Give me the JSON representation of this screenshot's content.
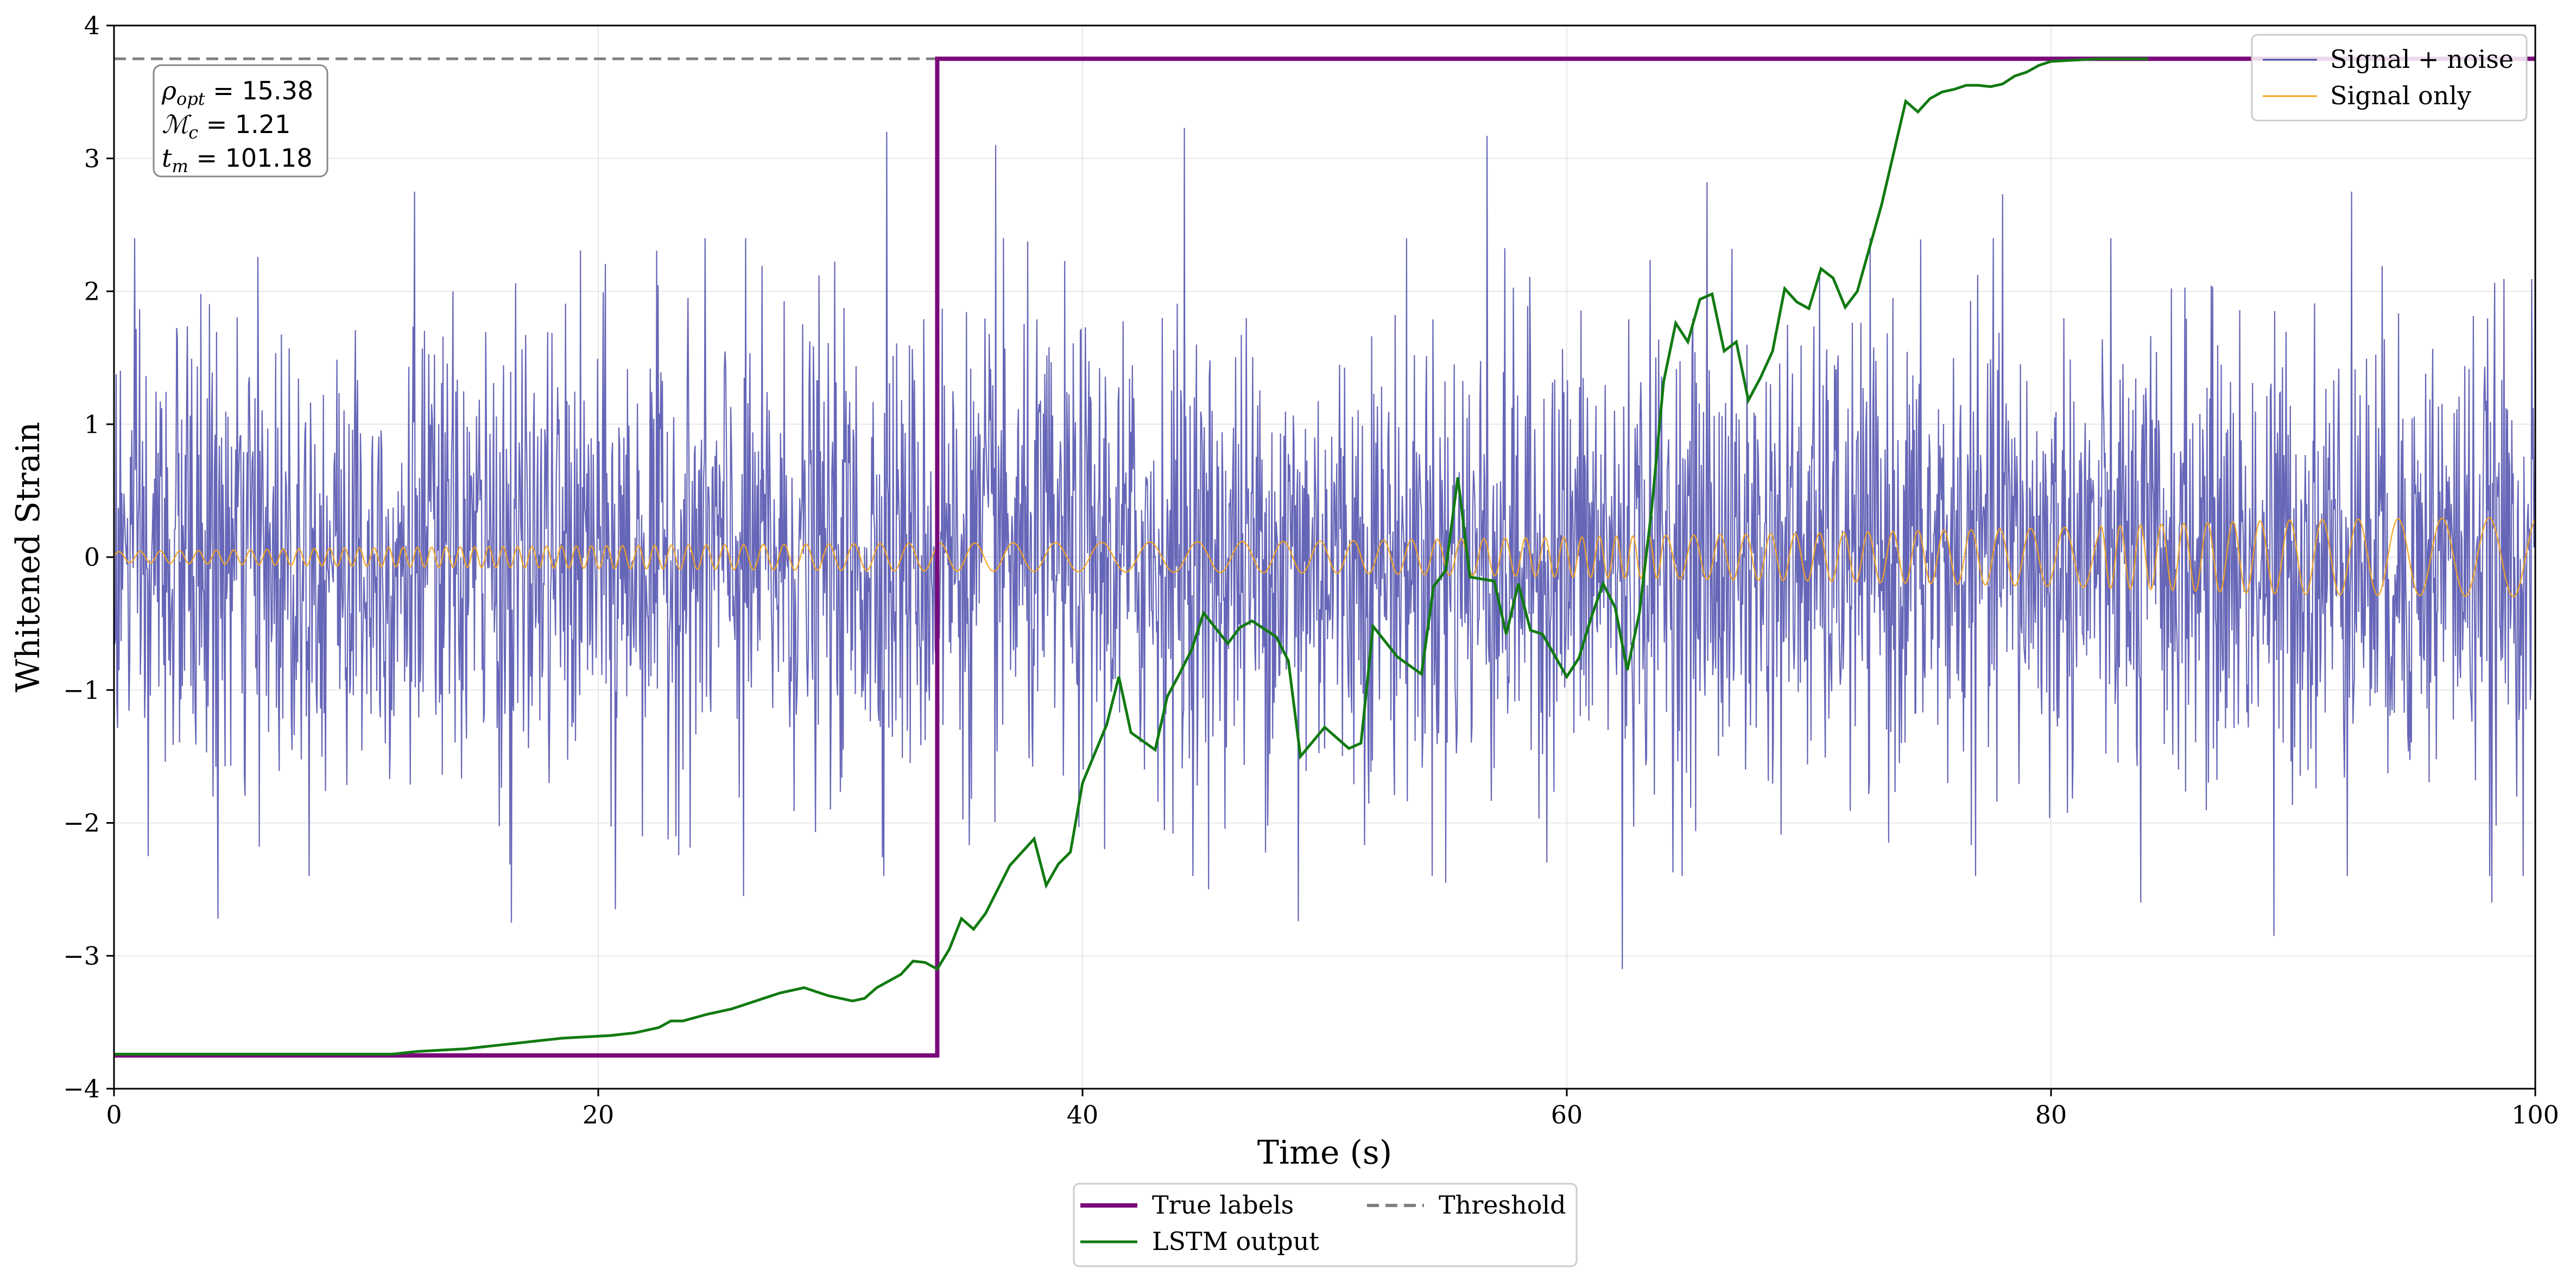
{
  "chart_data": {
    "type": "line",
    "xlabel": "Time (s)",
    "ylabel": "Whitened Strain",
    "xlim": [
      0,
      100
    ],
    "ylim": [
      -4,
      4
    ],
    "x_ticks": [
      "0",
      "20",
      "40",
      "60",
      "80",
      "100"
    ],
    "y_ticks": [
      "−4",
      "−3",
      "−2",
      "−1",
      "0",
      "1",
      "2",
      "3",
      "4"
    ],
    "grid": true,
    "threshold": 3.75,
    "annotation": {
      "rho": {
        "symbol": "ρ",
        "sub": "opt",
        "text": " = 15.38"
      },
      "mc": {
        "symbol": "ℳ",
        "sub": "c",
        "text": " = 1.21"
      },
      "tm": {
        "symbol": "t",
        "sub": "m",
        "text": " = 101.18"
      }
    },
    "legend_top": {
      "placement": "top-right",
      "entries": [
        "Signal + noise",
        "Signal only"
      ]
    },
    "legend_bottom": {
      "placement": "below-axes",
      "entries": [
        "True labels",
        "Threshold",
        "LSTM output"
      ]
    },
    "series": [
      {
        "name": "Signal + noise",
        "color": "#4b4bab",
        "noise_amplitude": 1.0,
        "extremes": [
          [
            1.4,
            -2.25
          ],
          [
            4.3,
            -2.72
          ],
          [
            12.4,
            2.75
          ],
          [
            16.4,
            -2.75
          ],
          [
            20.7,
            -2.65
          ],
          [
            26.0,
            -2.55
          ],
          [
            31.9,
            3.2
          ],
          [
            34.2,
            1.87
          ],
          [
            36.4,
            3.1
          ],
          [
            44.2,
            3.23
          ],
          [
            45.2,
            -2.5
          ],
          [
            48.9,
            -2.74
          ],
          [
            55.0,
            -2.45
          ],
          [
            56.7,
            3.17
          ],
          [
            62.3,
            -3.1
          ],
          [
            65.8,
            2.82
          ],
          [
            78.0,
            2.73
          ],
          [
            83.7,
            -2.6
          ],
          [
            89.2,
            -2.85
          ],
          [
            92.4,
            2.75
          ],
          [
            98.2,
            -2.6
          ]
        ]
      },
      {
        "name": "Signal only",
        "color": "#f5a31f",
        "amplitude_envelope": [
          [
            0,
            0.04
          ],
          [
            10,
            0.07
          ],
          [
            30,
            0.1
          ],
          [
            50,
            0.12
          ],
          [
            60,
            0.15
          ],
          [
            70,
            0.18
          ],
          [
            80,
            0.22
          ],
          [
            90,
            0.28
          ],
          [
            100,
            0.3
          ]
        ]
      },
      {
        "name": "True labels",
        "color": "#7a0a7a",
        "x": [
          0,
          34,
          34,
          100
        ],
        "y": [
          -3.75,
          -3.75,
          3.75,
          3.75
        ]
      },
      {
        "name": "LSTM output",
        "color": "#117a11",
        "x": [
          0,
          5,
          10,
          11.5,
          12.5,
          13.5,
          14.5,
          15.5,
          16.5,
          17.5,
          18.5,
          19.5,
          20.5,
          21.5,
          22.5,
          23.0,
          23.5,
          24.5,
          25.5,
          26.5,
          27.5,
          28.5,
          29.5,
          30.5,
          31.0,
          31.5,
          32.5,
          33.0,
          33.5,
          34.0,
          34.5,
          35.0,
          35.5,
          36.0,
          37.0,
          38.0,
          38.5,
          39.0,
          39.5,
          40.0,
          41.0,
          41.5,
          42.0,
          43.0,
          43.5,
          44.0,
          44.5,
          45.0,
          46.0,
          46.5,
          47.0,
          48.0,
          48.5,
          49.0,
          50.0,
          51.0,
          51.5,
          52.0,
          53.0,
          54.0,
          54.5,
          55.0,
          55.5,
          56.0,
          57.0,
          57.5,
          58.0,
          58.5,
          59.0,
          60.0,
          60.5,
          61.0,
          61.5,
          62.0,
          62.5,
          63.0,
          63.5,
          64.0,
          64.5,
          65.0,
          65.5,
          66.0,
          66.5,
          67.0,
          67.5,
          68.0,
          68.5,
          69.0,
          69.5,
          70.0,
          70.5,
          71.0,
          71.5,
          72.0,
          73.0,
          74.0,
          74.5,
          75.0,
          75.5,
          76.0,
          76.5,
          77.0,
          77.5,
          78.0,
          78.5,
          79.0,
          79.5,
          80.0,
          81.0,
          82.0,
          83.0,
          84.0
        ],
        "y": [
          -3.74,
          -3.74,
          -3.74,
          -3.74,
          -3.72,
          -3.71,
          -3.7,
          -3.68,
          -3.66,
          -3.64,
          -3.62,
          -3.61,
          -3.6,
          -3.58,
          -3.54,
          -3.49,
          -3.49,
          -3.44,
          -3.4,
          -3.34,
          -3.28,
          -3.24,
          -3.3,
          -3.34,
          -3.32,
          -3.24,
          -3.14,
          -3.04,
          -3.05,
          -3.1,
          -2.95,
          -2.72,
          -2.8,
          -2.68,
          -2.32,
          -2.12,
          -2.47,
          -2.31,
          -2.22,
          -1.7,
          -1.26,
          -0.9,
          -1.32,
          -1.45,
          -1.05,
          -0.88,
          -0.7,
          -0.42,
          -0.65,
          -0.53,
          -0.48,
          -0.6,
          -0.78,
          -1.5,
          -1.28,
          -1.44,
          -1.4,
          -0.52,
          -0.75,
          -0.88,
          -0.22,
          -0.1,
          0.6,
          -0.15,
          -0.18,
          -0.58,
          -0.2,
          -0.55,
          -0.58,
          -0.9,
          -0.76,
          -0.46,
          -0.2,
          -0.38,
          -0.85,
          -0.42,
          0.35,
          1.32,
          1.76,
          1.62,
          1.94,
          1.98,
          1.55,
          1.62,
          1.18,
          1.35,
          1.55,
          2.02,
          1.92,
          1.87,
          2.17,
          2.1,
          1.88,
          2.0,
          2.65,
          3.43,
          3.35,
          3.45,
          3.5,
          3.52,
          3.55,
          3.55,
          3.54,
          3.56,
          3.62,
          3.65,
          3.7,
          3.73,
          3.74,
          3.75,
          3.75,
          3.75
        ]
      }
    ]
  }
}
